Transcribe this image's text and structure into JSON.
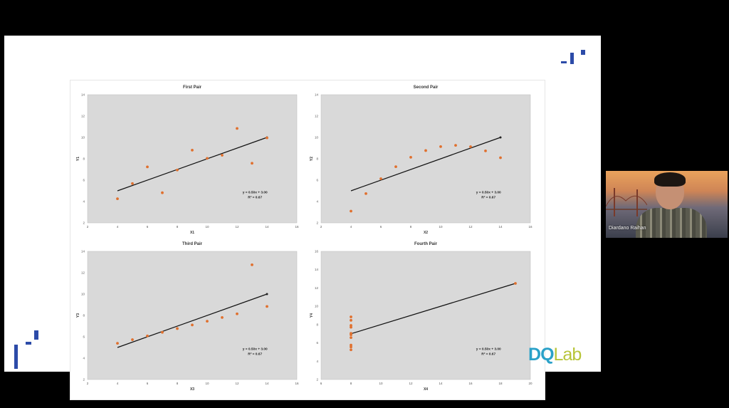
{
  "video": {
    "participant_name": "Diardano Raihan"
  },
  "logo": {
    "part1": "D",
    "part2": "Q",
    "part3": "Lab"
  },
  "chart_data": [
    {
      "type": "scatter",
      "title": "First Pair",
      "xlabel": "X1",
      "ylabel": "Y1",
      "xlim": [
        2,
        16
      ],
      "ylim": [
        2,
        14
      ],
      "xticks": [
        "2",
        "4",
        "6",
        "8",
        "10",
        "12",
        "14",
        "16"
      ],
      "yticks": [
        "2",
        "4",
        "6",
        "8",
        "10",
        "12",
        "14"
      ],
      "points": [
        [
          10,
          8.04
        ],
        [
          8,
          6.95
        ],
        [
          13,
          7.58
        ],
        [
          9,
          8.81
        ],
        [
          11,
          8.33
        ],
        [
          14,
          9.96
        ],
        [
          6,
          7.24
        ],
        [
          4,
          4.26
        ],
        [
          12,
          10.84
        ],
        [
          7,
          4.82
        ],
        [
          5,
          5.68
        ]
      ],
      "fit_line": [
        [
          4,
          5.0
        ],
        [
          14,
          10.0
        ]
      ],
      "equation": "y = 0.50x + 3.00",
      "r2": "R² = 0.67",
      "grid": false
    },
    {
      "type": "scatter",
      "title": "Second Pair",
      "xlabel": "X2",
      "ylabel": "Y2",
      "xlim": [
        2,
        16
      ],
      "ylim": [
        2,
        14
      ],
      "xticks": [
        "2",
        "4",
        "6",
        "8",
        "10",
        "12",
        "14",
        "16"
      ],
      "yticks": [
        "2",
        "4",
        "6",
        "8",
        "10",
        "12",
        "14"
      ],
      "points": [
        [
          10,
          9.14
        ],
        [
          8,
          8.14
        ],
        [
          13,
          8.74
        ],
        [
          9,
          8.77
        ],
        [
          11,
          9.26
        ],
        [
          14,
          8.1
        ],
        [
          6,
          6.13
        ],
        [
          4,
          3.1
        ],
        [
          12,
          9.13
        ],
        [
          7,
          7.26
        ],
        [
          5,
          4.74
        ]
      ],
      "fit_line": [
        [
          4,
          5.0
        ],
        [
          14,
          10.0
        ]
      ],
      "equation": "y = 0.50x + 3.00",
      "r2": "R² = 0.67",
      "grid": false
    },
    {
      "type": "scatter",
      "title": "Third Pair",
      "xlabel": "X3",
      "ylabel": "Y3",
      "xlim": [
        2,
        16
      ],
      "ylim": [
        2,
        14
      ],
      "xticks": [
        "2",
        "4",
        "6",
        "8",
        "10",
        "12",
        "14",
        "16"
      ],
      "yticks": [
        "2",
        "4",
        "6",
        "8",
        "10",
        "12",
        "14"
      ],
      "points": [
        [
          10,
          7.46
        ],
        [
          8,
          6.77
        ],
        [
          13,
          12.74
        ],
        [
          9,
          7.11
        ],
        [
          11,
          7.81
        ],
        [
          14,
          8.84
        ],
        [
          6,
          6.08
        ],
        [
          4,
          5.39
        ],
        [
          12,
          8.15
        ],
        [
          7,
          6.42
        ],
        [
          5,
          5.73
        ]
      ],
      "fit_line": [
        [
          4,
          5.0
        ],
        [
          14,
          10.0
        ]
      ],
      "equation": "y = 0.50x + 3.00",
      "r2": "R² = 0.67",
      "grid": false
    },
    {
      "type": "scatter",
      "title": "Fourth Pair",
      "xlabel": "X4",
      "ylabel": "Y4",
      "xlim": [
        6,
        20
      ],
      "ylim": [
        2,
        16
      ],
      "xticks": [
        "6",
        "8",
        "10",
        "12",
        "14",
        "16",
        "18",
        "20"
      ],
      "yticks": [
        "2",
        "4",
        "6",
        "8",
        "10",
        "12",
        "14",
        "16"
      ],
      "points": [
        [
          8,
          6.58
        ],
        [
          8,
          5.76
        ],
        [
          8,
          7.71
        ],
        [
          8,
          8.84
        ],
        [
          8,
          8.47
        ],
        [
          8,
          7.04
        ],
        [
          8,
          5.25
        ],
        [
          19,
          12.5
        ],
        [
          8,
          5.56
        ],
        [
          8,
          7.91
        ],
        [
          8,
          6.89
        ]
      ],
      "fit_line": [
        [
          8,
          7.0
        ],
        [
          19,
          12.5
        ]
      ],
      "equation": "y = 0.50x + 3.00",
      "r2": "R² = 0.67",
      "grid": false
    }
  ]
}
